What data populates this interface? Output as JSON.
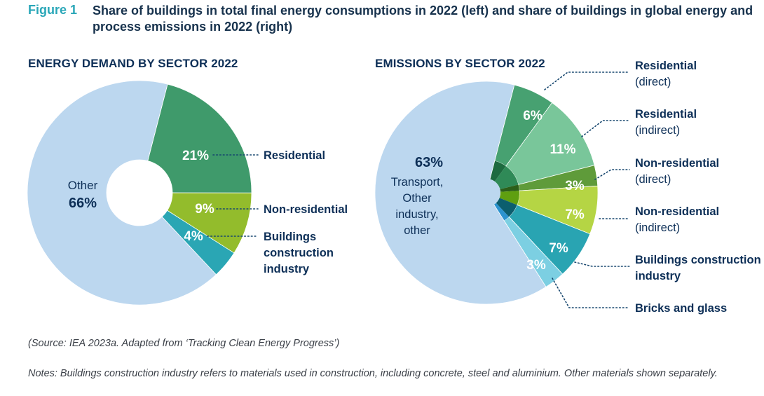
{
  "figure": {
    "label": "Figure 1",
    "title": "Share of buildings in total final energy consumptions in 2022 (left) and share of buildings in global energy and process emissions in 2022 (right)"
  },
  "source": "(Source: IEA 2023a. Adapted from ‘Tracking Clean Energy Progress’)",
  "notes": "Notes: Buildings construction industry refers to materials used in construction, including concrete, steel and aluminium. Other materials shown separately.",
  "chart_data": [
    {
      "type": "pie",
      "title": "ENERGY DEMAND  BY SECTOR 2022",
      "slices": [
        {
          "label": "Residential",
          "value": 21,
          "value_label": "21%",
          "color": "#3f9a6b"
        },
        {
          "label": "Non-residential",
          "value": 9,
          "value_label": "9%",
          "color": "#93bc2c"
        },
        {
          "label": "Buildings construction industry",
          "value": 4,
          "value_label": "4%",
          "color": "#2aa6b4"
        },
        {
          "label": "Other",
          "value": 66,
          "value_label": "66%",
          "color": "#bcd7ef"
        }
      ]
    },
    {
      "type": "pie",
      "title": "EMISSIONS BY SECTOR 2022",
      "slices": [
        {
          "label": "Residential (direct)",
          "value": 6,
          "value_label": "6%",
          "color": "#47a171",
          "core_color": "#1d6a3f"
        },
        {
          "label": "Residential (indirect)",
          "value": 11,
          "value_label": "11%",
          "color": "#79c69a",
          "core_color": "#2f8a57"
        },
        {
          "label": "Non-residential (direct)",
          "value": 3,
          "value_label": "3%",
          "color": "#5f9b3a",
          "core_color": "#2c5f1a"
        },
        {
          "label": "Non-residential (indirect)",
          "value": 7,
          "value_label": "7%",
          "color": "#b5d544",
          "core_color": "#5f9f10"
        },
        {
          "label": "Buildings construction industry",
          "value": 7,
          "value_label": "7%",
          "color": "#29a4b2",
          "core_color": "#0c5e6e"
        },
        {
          "label": "Bricks and glass",
          "value": 3,
          "value_label": "3%",
          "color": "#7ccfe2",
          "core_color": "#2c93cf"
        },
        {
          "label": "Transport, Other industry, other",
          "value": 63,
          "value_label": "63%",
          "color": "#bcd7ef"
        }
      ]
    }
  ]
}
